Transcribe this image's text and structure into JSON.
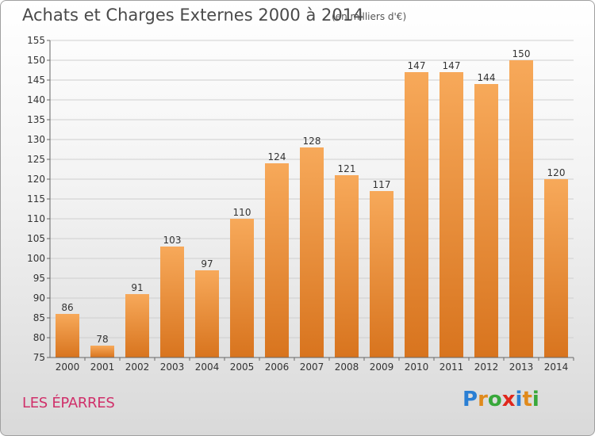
{
  "header": {
    "title": "Achats et Charges Externes 2000 à 2014",
    "subtitle": "(en milliers d'€)"
  },
  "footer": {
    "place": "LES ÉPARRES",
    "logo_letters": [
      {
        "ch": "P",
        "color": "#2a7fd4"
      },
      {
        "ch": "r",
        "color": "#e08a1c"
      },
      {
        "ch": "o",
        "color": "#38a83a"
      },
      {
        "ch": "x",
        "color": "#e0271c"
      },
      {
        "ch": "i",
        "color": "#2a7fd4"
      },
      {
        "ch": "t",
        "color": "#e08a1c"
      },
      {
        "ch": "i",
        "color": "#38a83a"
      }
    ]
  },
  "colors": {
    "bar_light": "#f7a95a",
    "bar_dark": "#d8741e",
    "grid": "#cfcfcf",
    "text": "#333333"
  },
  "chart_data": {
    "type": "bar",
    "categories": [
      "2000",
      "2001",
      "2002",
      "2003",
      "2004",
      "2005",
      "2006",
      "2007",
      "2008",
      "2009",
      "2010",
      "2011",
      "2012",
      "2013",
      "2014"
    ],
    "values": [
      86,
      78,
      91,
      103,
      97,
      110,
      124,
      128,
      121,
      117,
      147,
      147,
      144,
      150,
      120
    ],
    "ylim": [
      75,
      155
    ],
    "yticks": [
      75,
      80,
      85,
      90,
      95,
      100,
      105,
      110,
      115,
      120,
      125,
      130,
      135,
      140,
      145,
      150,
      155
    ],
    "title": "Achats et Charges Externes 2000 à 2014",
    "xlabel": "",
    "ylabel": "",
    "grid": true,
    "data_labels": true
  }
}
